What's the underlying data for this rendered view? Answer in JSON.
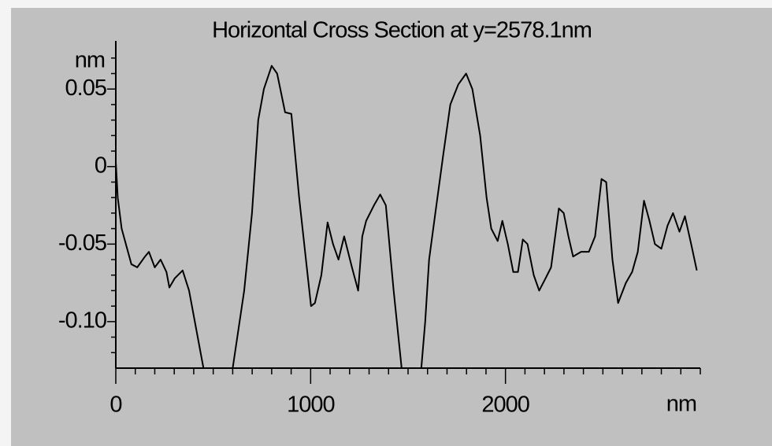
{
  "chart_data": {
    "type": "line",
    "title": "Horizontal Cross Section at y=2578.1nm",
    "y_label": "nm",
    "x_label": "nm",
    "xlim": [
      0,
      3000
    ],
    "ylim": [
      -0.13,
      0.077
    ],
    "xticks": [
      0,
      1000,
      2000
    ],
    "yticks": [
      {
        "value": -0.1,
        "label": "-0.10"
      },
      -0.05,
      0,
      0.05
    ],
    "xminorticks": [
      100,
      200,
      300,
      400,
      500,
      600,
      700,
      800,
      900,
      1100,
      1200,
      1300,
      1400,
      1500,
      1600,
      1700,
      1800,
      1900,
      2100,
      2200,
      2300,
      2400,
      2500,
      2600,
      2700,
      2800,
      2900,
      3000
    ],
    "yminorticks": [
      -0.12,
      -0.11,
      -0.09,
      -0.08,
      -0.07,
      -0.06,
      -0.04,
      -0.03,
      -0.02,
      -0.01,
      0.01,
      0.02,
      0.03,
      0.04,
      0.06,
      0.07
    ],
    "series": [
      {
        "color": "#000000",
        "x": [
          0,
          10,
          30,
          80,
          110,
          150,
          170,
          200,
          230,
          260,
          275,
          303,
          343,
          376,
          450,
          525,
          600,
          659,
          699,
          731,
          760,
          800,
          828,
          869,
          901,
          941,
          1002,
          1022,
          1055,
          1087,
          1115,
          1143,
          1172,
          1212,
          1244,
          1265,
          1285,
          1325,
          1357,
          1386,
          1426,
          1467,
          1515,
          1568,
          1588,
          1608,
          1640,
          1681,
          1717,
          1758,
          1798,
          1830,
          1870,
          1903,
          1927,
          1960,
          1984,
          2012,
          2040,
          2064,
          2089,
          2113,
          2145,
          2173,
          2206,
          2234,
          2274,
          2299,
          2323,
          2347,
          2388,
          2428,
          2460,
          2493,
          2517,
          2549,
          2578,
          2618,
          2650,
          2679,
          2711,
          2739,
          2767,
          2800,
          2832,
          2860,
          2893,
          2921,
          2953,
          2982
        ],
        "values": [
          0.003,
          -0.02,
          -0.04,
          -0.063,
          -0.065,
          -0.058,
          -0.055,
          -0.065,
          -0.06,
          -0.068,
          -0.078,
          -0.072,
          -0.067,
          -0.08,
          -0.13,
          -0.17,
          -0.13,
          -0.08,
          -0.03,
          0.03,
          0.05,
          0.065,
          0.06,
          0.035,
          0.034,
          -0.02,
          -0.09,
          -0.088,
          -0.07,
          -0.036,
          -0.05,
          -0.06,
          -0.045,
          -0.065,
          -0.08,
          -0.045,
          -0.035,
          -0.025,
          -0.018,
          -0.025,
          -0.08,
          -0.13,
          -0.165,
          -0.13,
          -0.1,
          -0.06,
          -0.03,
          0.008,
          0.04,
          0.053,
          0.06,
          0.05,
          0.02,
          -0.02,
          -0.04,
          -0.048,
          -0.035,
          -0.05,
          -0.068,
          -0.068,
          -0.047,
          -0.05,
          -0.07,
          -0.08,
          -0.072,
          -0.065,
          -0.027,
          -0.03,
          -0.045,
          -0.058,
          -0.055,
          -0.055,
          -0.045,
          -0.008,
          -0.01,
          -0.06,
          -0.088,
          -0.075,
          -0.068,
          -0.055,
          -0.022,
          -0.035,
          -0.05,
          -0.053,
          -0.038,
          -0.03,
          -0.042,
          -0.032,
          -0.05,
          -0.067
        ]
      }
    ]
  }
}
